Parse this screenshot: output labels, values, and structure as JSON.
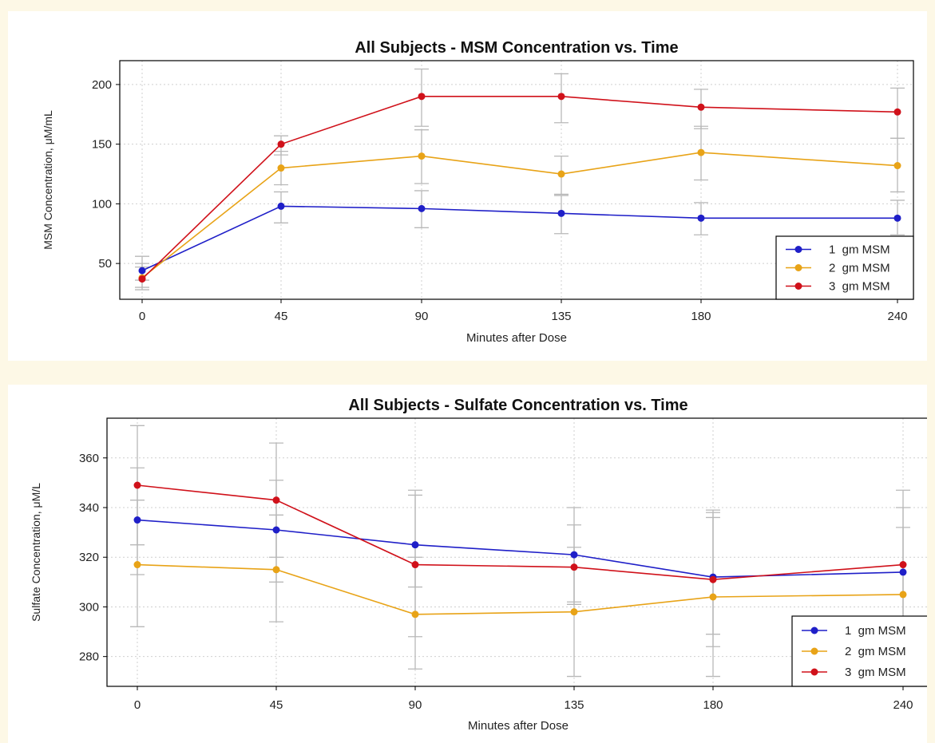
{
  "chart_data": [
    {
      "type": "line",
      "title": "All Subjects - MSM Concentration vs. Time",
      "xlabel": "Minutes after Dose",
      "ylabel": "MSM Concentration, μM/mL",
      "categories": [
        "0",
        "45",
        "90",
        "135",
        "180",
        "240"
      ],
      "ylim": [
        20,
        220
      ],
      "yticks": [
        50,
        100,
        150,
        200
      ],
      "grid": true,
      "legend_position": "bottom-right",
      "series": [
        {
          "name": "1  gm MSM",
          "color": "#1f1fc8",
          "values": [
            44,
            98,
            96,
            92,
            88,
            88
          ],
          "err_low": [
            36,
            84,
            80,
            75,
            74,
            74
          ],
          "err_high": [
            56,
            110,
            111,
            107,
            101,
            103
          ]
        },
        {
          "name": "2  gm MSM",
          "color": "#e8a317",
          "values": [
            38,
            130,
            140,
            125,
            143,
            132
          ],
          "err_low": [
            30,
            116,
            117,
            108,
            120,
            110
          ],
          "err_high": [
            50,
            144,
            162,
            140,
            165,
            155
          ]
        },
        {
          "name": "3  gm MSM",
          "color": "#d0111a",
          "values": [
            37,
            150,
            190,
            190,
            181,
            177
          ],
          "err_low": [
            28,
            141,
            165,
            168,
            163,
            155
          ],
          "err_high": [
            47,
            157,
            213,
            209,
            196,
            197
          ]
        }
      ]
    },
    {
      "type": "line",
      "title": "All Subjects - Sulfate Concentration vs. Time",
      "xlabel": "Minutes after Dose",
      "ylabel": "Sulfate Concentration, μM/L",
      "categories": [
        "0",
        "45",
        "90",
        "135",
        "180",
        "240"
      ],
      "ylim": [
        268,
        376
      ],
      "yticks": [
        280,
        300,
        320,
        340,
        360
      ],
      "grid": true,
      "legend_position": "bottom-right",
      "series": [
        {
          "name": "1  gm MSM",
          "color": "#1f1fc8",
          "values": [
            335,
            331,
            325,
            321,
            312,
            314
          ],
          "err_low": [
            313,
            310,
            308,
            302,
            289,
            296
          ],
          "err_high": [
            356,
            351,
            345,
            340,
            336,
            332
          ]
        },
        {
          "name": "2  gm MSM",
          "color": "#e8a317",
          "values": [
            317,
            315,
            297,
            298,
            304,
            305
          ],
          "err_low": [
            292,
            294,
            275,
            272,
            284,
            276
          ],
          "err_high": [
            343,
            337,
            320,
            324,
            338,
            347
          ]
        },
        {
          "name": "3  gm MSM",
          "color": "#d0111a",
          "values": [
            349,
            343,
            317,
            316,
            311,
            317
          ],
          "err_low": [
            325,
            320,
            288,
            301,
            272,
            296
          ],
          "err_high": [
            373,
            366,
            347,
            333,
            339,
            340
          ]
        }
      ]
    }
  ]
}
